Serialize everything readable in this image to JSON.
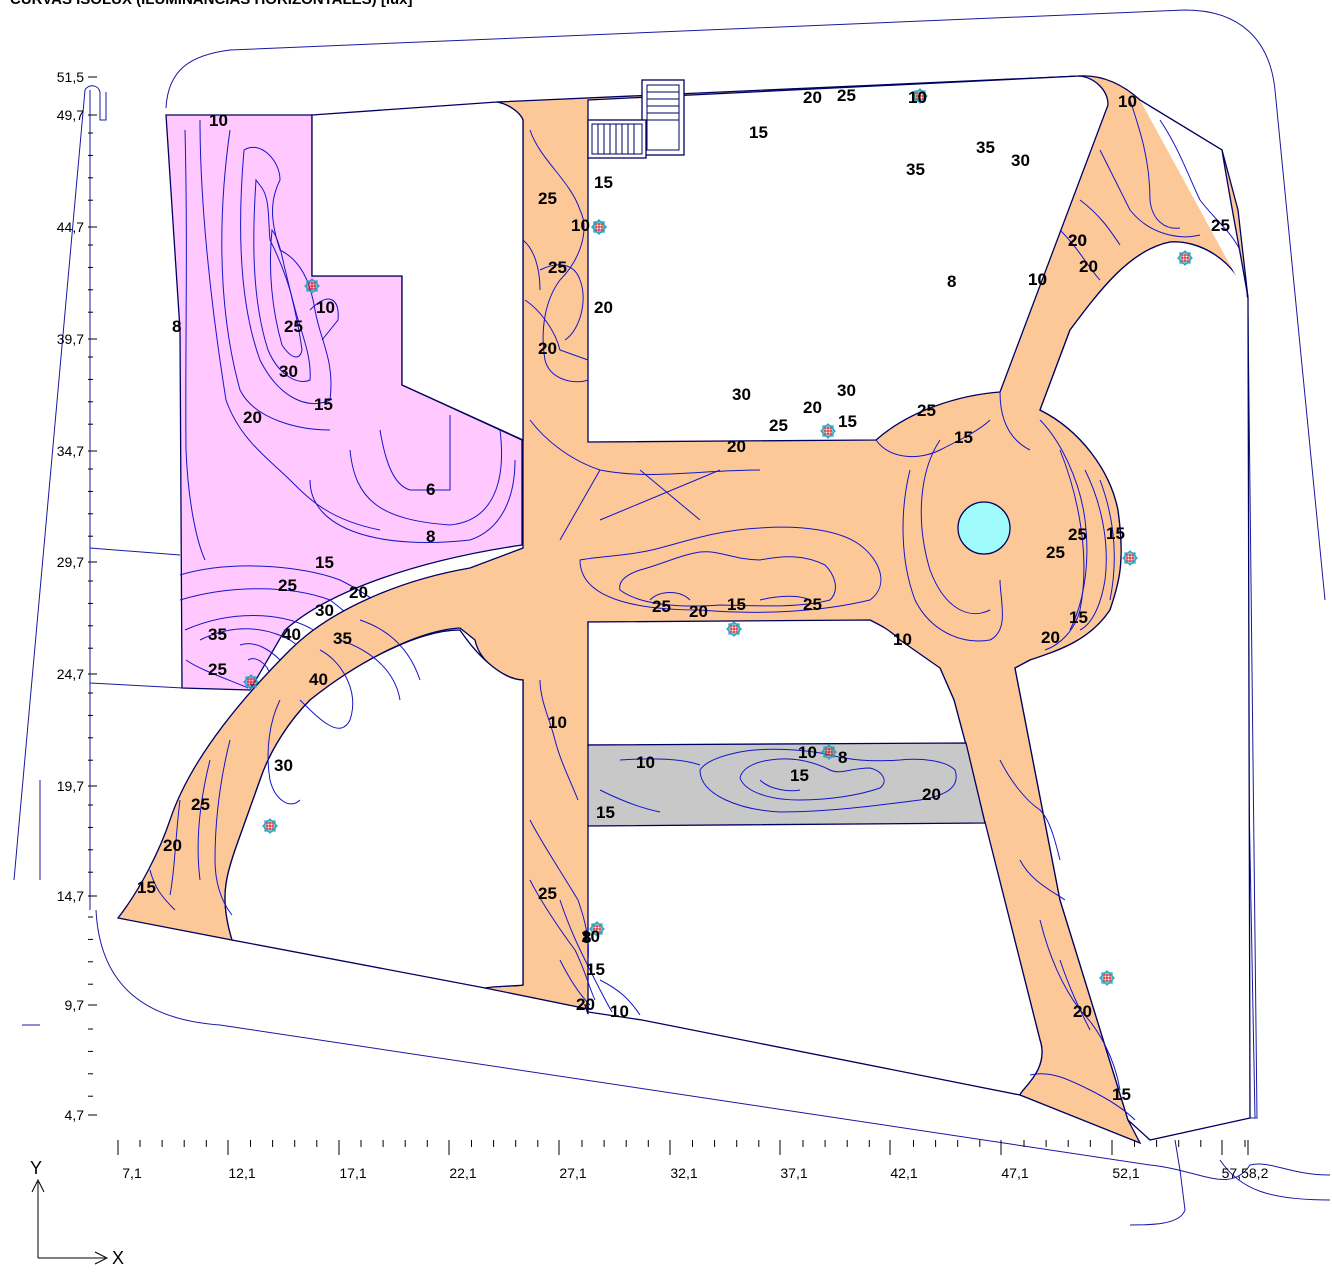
{
  "title": "CURVAS ISOLUX (ILUMINANCIAS HORIZONTALES) [lux]",
  "axes": {
    "x_name": "X",
    "y_name": "Y",
    "y_ticks": [
      "51,5",
      "49,7",
      "44,7",
      "39,7",
      "34,7",
      "29,7",
      "24,7",
      "19,7",
      "14,7",
      "9,7",
      "4,7"
    ],
    "x_ticks": [
      "7,1",
      "12,1",
      "17,1",
      "22,1",
      "27,1",
      "32,1",
      "37,1",
      "42,1",
      "47,1",
      "52,1",
      "57,58,2"
    ]
  },
  "zone_colors": {
    "pink": "#ffc8ff",
    "green": "#b6ffc6",
    "orange": "#fcc898",
    "gray": "#c8c8c8",
    "fountain": "#a0fcfc",
    "lines": "#1515c8"
  },
  "contour_labels": {
    "pink": [
      "10",
      "10",
      "8",
      "25",
      "30",
      "15",
      "20",
      "6",
      "8",
      "15",
      "25",
      "20",
      "30",
      "35",
      "40",
      "35",
      "25",
      "40"
    ],
    "green": [
      "20",
      "25",
      "10",
      "15",
      "35",
      "30",
      "35",
      "15",
      "10",
      "20",
      "8",
      "10",
      "30",
      "30",
      "20",
      "25",
      "15",
      "25",
      "20"
    ],
    "orange": [
      "10",
      "25",
      "25",
      "20",
      "20",
      "20",
      "15",
      "25",
      "15",
      "25",
      "15",
      "25",
      "20",
      "15",
      "25",
      "10",
      "25",
      "20",
      "10",
      "30",
      "25",
      "20",
      "15",
      "10",
      "15",
      "20",
      "10",
      "25",
      "8",
      "15",
      "20",
      "10",
      "20",
      "15"
    ],
    "gray": [
      "10",
      "8",
      "15",
      "10",
      "20"
    ]
  },
  "luminaires": [
    "lum-1",
    "lum-2",
    "lum-3",
    "lum-4",
    "lum-5",
    "lum-6",
    "lum-7",
    "lum-8",
    "lum-9",
    "lum-10",
    "lum-11",
    "lum-12",
    "lum-13"
  ]
}
